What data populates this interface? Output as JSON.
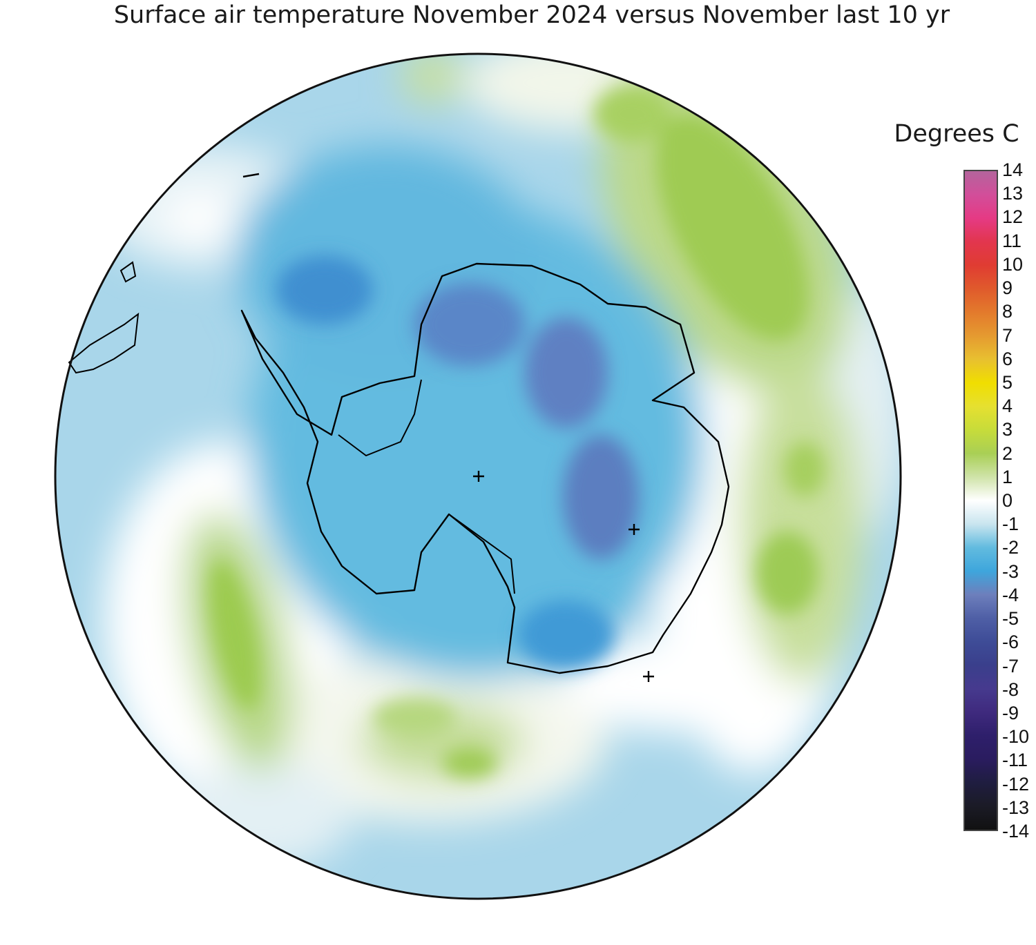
{
  "title": "Surface air temperature November 2024 versus November last 10 yr",
  "colorbar": {
    "label": "Degrees C",
    "ticks": [
      "14",
      "13",
      "12",
      "11",
      "10",
      "9",
      "8",
      "7",
      "6",
      "5",
      "4",
      "3",
      "2",
      "1",
      "0",
      "-1",
      "-2",
      "-3",
      "-4",
      "-5",
      "-6",
      "-7",
      "-8",
      "-9",
      "-10",
      "-11",
      "-12",
      "-13",
      "-14"
    ],
    "colors": {
      "14": "#b4649c",
      "13": "#d24e9a",
      "12": "#e53a84",
      "11": "#e2364e",
      "10": "#e03c32",
      "9": "#e05a2c",
      "8": "#e37a2c",
      "7": "#e59a30",
      "6": "#e8c030",
      "5": "#f0de00",
      "4": "#e6e030",
      "3": "#c7dc3a",
      "2": "#a9cf55",
      "1": "#cfe3a8",
      "0": "#ffffff",
      "-1": "#c9e5ef",
      "-2": "#62bbdf",
      "-3": "#3ea6dc",
      "-4": "#6d7fbc",
      "-5": "#4f5fa6",
      "-6": "#3e4c97",
      "-7": "#3a3f8c",
      "-8": "#463a8e",
      "-9": "#3f2a7e",
      "-10": "#2e1f6b",
      "-11": "#2a1c5f",
      "-12": "#1f1d40",
      "-13": "#1b1b26",
      "-14": "#111111"
    }
  },
  "map": {
    "projection": "south polar stereographic",
    "region": "Antarctica and Southern Ocean",
    "markers": [
      "plus",
      "plus",
      "plus"
    ]
  }
}
